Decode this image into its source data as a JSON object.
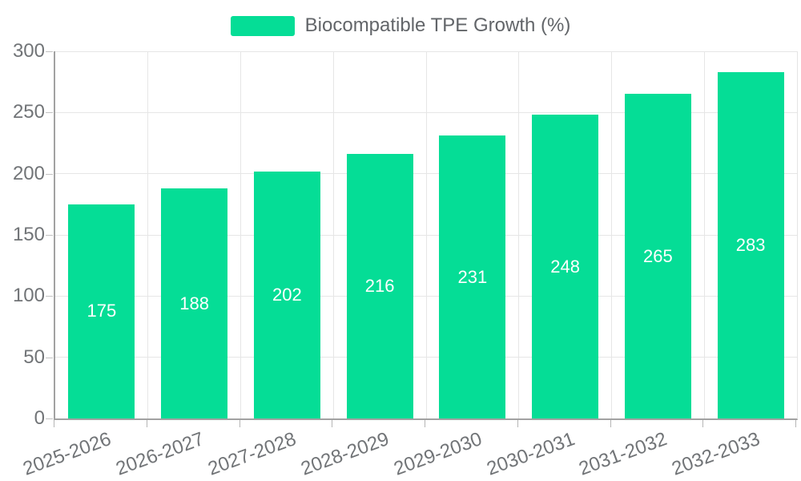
{
  "legend": {
    "label": "Biocompatible TPE Growth (%)",
    "swatch_color": "#05dd96"
  },
  "chart_data": {
    "type": "bar",
    "title": "",
    "xlabel": "",
    "ylabel": "",
    "categories": [
      "2025-2026",
      "2026-2027",
      "2027-2028",
      "2028-2029",
      "2029-2030",
      "2030-2031",
      "2031-2032",
      "2032-2033"
    ],
    "series": [
      {
        "name": "Biocompatible TPE Growth (%)",
        "values": [
          175,
          188,
          202,
          216,
          231,
          248,
          265,
          283
        ],
        "color": "#05dd96"
      }
    ],
    "data_labels": [
      "175",
      "188",
      "202",
      "216",
      "231",
      "248",
      "265",
      "283"
    ],
    "ylim": [
      0,
      300
    ],
    "yticks": [
      0,
      50,
      100,
      150,
      200,
      250,
      300
    ],
    "grid": true,
    "legend_position": "top",
    "x_label_rotation_deg": -20
  },
  "colors": {
    "bar": "#05dd96",
    "bar_label_text": "#ffffff",
    "axis_line": "#a2a2a2",
    "gridline": "#e6e6e6",
    "tick_text": "#717477",
    "legend_text": "#626569",
    "background": "#ffffff"
  }
}
